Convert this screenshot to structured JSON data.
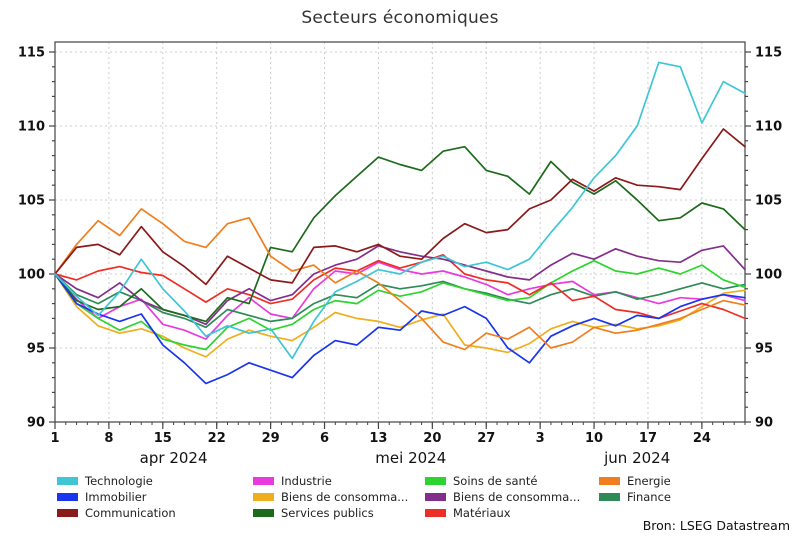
{
  "title": "Secteurs économiques",
  "source": "Bron: LSEG Datastream",
  "chart_data": {
    "type": "line",
    "title": "Secteurs économiques",
    "ylim": [
      90,
      115
    ],
    "y_ticks": [
      90,
      95,
      100,
      105,
      110,
      115
    ],
    "grid": true,
    "legend_position": "bottom",
    "x_days": [
      0,
      2,
      4,
      6,
      8,
      10,
      12,
      14,
      16,
      18,
      20,
      22,
      24,
      26,
      28,
      30,
      32,
      34,
      36,
      38,
      40,
      42,
      44,
      46,
      48,
      50,
      52,
      54,
      56,
      58,
      60,
      62,
      64
    ],
    "x_ticks": [
      {
        "d": 0,
        "label": "1"
      },
      {
        "d": 5,
        "label": "8"
      },
      {
        "d": 10,
        "label": "15"
      },
      {
        "d": 15,
        "label": "22"
      },
      {
        "d": 20,
        "label": "29"
      },
      {
        "d": 25,
        "label": "6"
      },
      {
        "d": 30,
        "label": "13"
      },
      {
        "d": 35,
        "label": "20"
      },
      {
        "d": 40,
        "label": "27"
      },
      {
        "d": 45,
        "label": "3"
      },
      {
        "d": 50,
        "label": "10"
      },
      {
        "d": 55,
        "label": "17"
      },
      {
        "d": 60,
        "label": "24"
      }
    ],
    "month_labels": [
      {
        "label": "apr 2024",
        "d": 11
      },
      {
        "label": "mei 2024",
        "d": 33
      },
      {
        "label": "jun 2024",
        "d": 54
      }
    ],
    "legend_columns": [
      [
        0,
        1,
        2
      ],
      [
        3,
        4,
        5
      ],
      [
        6,
        7,
        8
      ],
      [
        9,
        10
      ]
    ],
    "series": [
      {
        "label": "Technologie",
        "color": "#3EC6D4",
        "values": [
          100,
          98.5,
          97.2,
          98.8,
          101,
          99,
          97.5,
          95.8,
          96.5,
          96,
          96.3,
          94.3,
          96.8,
          98.8,
          99.5,
          100.3,
          100,
          100.8,
          101.2,
          100.5,
          100.8,
          100.3,
          101,
          102.8,
          104.5,
          106.5,
          108,
          110,
          114.3,
          114,
          110.2,
          113,
          112.2
        ]
      },
      {
        "label": "Immobilier",
        "color": "#1A35EE",
        "values": [
          100,
          98,
          97.3,
          96.8,
          97.3,
          95.2,
          94,
          92.6,
          93.2,
          94,
          93.5,
          93,
          94.5,
          95.5,
          95.2,
          96.4,
          96.2,
          97.5,
          97.2,
          97.8,
          97,
          95,
          94,
          95.8,
          96.5,
          97,
          96.5,
          97.2,
          97,
          97.8,
          98.3,
          98.6,
          98.4
        ]
      },
      {
        "label": "Communication",
        "color": "#8B1A1A",
        "values": [
          100,
          101.8,
          102,
          101.3,
          103.2,
          101.5,
          100.5,
          99.3,
          101.2,
          100.4,
          99.6,
          99.4,
          101.8,
          101.9,
          101.5,
          102,
          101.2,
          101,
          102.4,
          103.4,
          102.8,
          103,
          104.4,
          105,
          106.4,
          105.6,
          106.5,
          106,
          105.9,
          105.7,
          107.8,
          109.8,
          108.6
        ]
      },
      {
        "label": "Industrie",
        "color": "#E93AE0",
        "values": [
          100,
          98.3,
          97,
          97.8,
          98.3,
          96.6,
          96.2,
          95.6,
          97.2,
          98.4,
          97.3,
          97,
          99,
          100.2,
          100,
          100.8,
          100.3,
          100,
          100.2,
          99.8,
          99.3,
          98.6,
          99,
          99.3,
          99.5,
          98.6,
          98.8,
          98.4,
          98,
          98.4,
          98.3,
          98.6,
          98.2
        ]
      },
      {
        "label": "Biens de consomma...",
        "color": "#EFAE1E",
        "values": [
          100,
          97.8,
          96.5,
          96,
          96.3,
          95.8,
          95,
          94.4,
          95.6,
          96.2,
          95.8,
          95.5,
          96.4,
          97.4,
          97,
          96.8,
          96.4,
          96.9,
          97.3,
          95.2,
          95,
          94.7,
          95.3,
          96.3,
          96.8,
          96.4,
          96.6,
          96.3,
          96.5,
          96.9,
          97.8,
          98.7,
          98.9
        ]
      },
      {
        "label": "Services publics",
        "color": "#1C6B1C",
        "values": [
          100,
          98.2,
          97.6,
          97.8,
          99,
          97.6,
          97.2,
          96.8,
          98.4,
          98,
          101.8,
          101.5,
          103.8,
          105.3,
          106.6,
          107.9,
          107.4,
          107,
          108.3,
          108.6,
          107,
          106.6,
          105.4,
          107.6,
          106.2,
          105.4,
          106.3,
          105,
          103.6,
          103.8,
          104.8,
          104.4,
          103
        ]
      },
      {
        "label": "Soins de santé",
        "color": "#2ED42E",
        "values": [
          100,
          98,
          97,
          96.2,
          96.8,
          95.6,
          95.2,
          94.9,
          96.4,
          97,
          96.2,
          96.6,
          97.6,
          98.2,
          98,
          98.9,
          98.5,
          98.8,
          99.4,
          99,
          98.6,
          98.2,
          98.4,
          99.4,
          100.2,
          100.9,
          100.2,
          100,
          100.4,
          100,
          100.6,
          99.6,
          99.1
        ]
      },
      {
        "label": "Biens de consomma...",
        "color": "#842E8C",
        "values": [
          100,
          99,
          98.4,
          99.4,
          98.2,
          97.6,
          97.2,
          96.6,
          98.2,
          99,
          98.2,
          98.6,
          100,
          100.6,
          101,
          101.9,
          101.5,
          101.2,
          101,
          100.6,
          100.2,
          99.8,
          99.6,
          100.6,
          101.4,
          101,
          101.7,
          101.2,
          100.9,
          100.8,
          101.6,
          101.9,
          100.3
        ]
      },
      {
        "label": "Matériaux",
        "color": "#EE2E24",
        "values": [
          100,
          99.6,
          100.2,
          100.5,
          100.1,
          99.9,
          99,
          98.1,
          99,
          98.6,
          98,
          98.3,
          99.6,
          100.4,
          100.2,
          100.9,
          100.4,
          100.8,
          101.3,
          100,
          99.6,
          99.4,
          98.6,
          99.4,
          98.2,
          98.5,
          97.6,
          97.4,
          97,
          97.5,
          98,
          97.6,
          97
        ]
      },
      {
        "label": "Energie",
        "color": "#F07E1E",
        "values": [
          100,
          102,
          103.6,
          102.6,
          104.4,
          103.4,
          102.2,
          101.8,
          103.4,
          103.8,
          101.2,
          100.2,
          100.6,
          99.4,
          100.2,
          99.4,
          98.2,
          97,
          95.4,
          94.9,
          96,
          95.6,
          96.4,
          95,
          95.4,
          96.4,
          96,
          96.2,
          96.6,
          97,
          97.6,
          98.2,
          97.9
        ]
      },
      {
        "label": "Finance",
        "color": "#2E8B57",
        "values": [
          100,
          98.6,
          98,
          98.8,
          98.2,
          97.4,
          97,
          96.4,
          97.6,
          97.2,
          96.8,
          97,
          98,
          98.6,
          98.4,
          99.3,
          99,
          99.2,
          99.5,
          99,
          98.7,
          98.3,
          98,
          98.6,
          99,
          98.5,
          98.8,
          98.3,
          98.6,
          99,
          99.4,
          99,
          99.3
        ]
      }
    ]
  }
}
